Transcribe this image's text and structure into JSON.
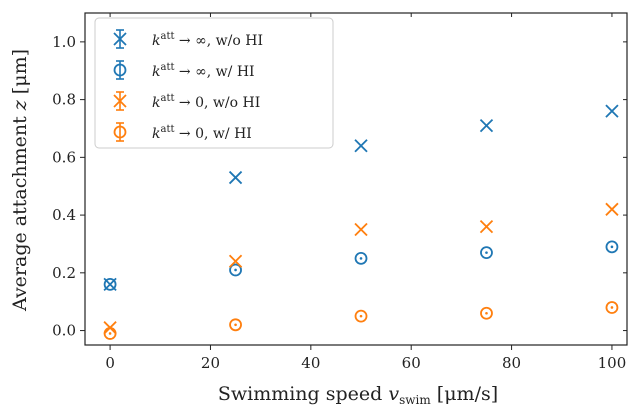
{
  "chart_data": {
    "type": "scatter",
    "xlabel": "Swimming speed v_swim [μm/s]",
    "ylabel": "Average attachment z [μm]",
    "xlim": [
      -5,
      103
    ],
    "ylim": [
      -0.05,
      1.1
    ],
    "xticks": [
      0,
      20,
      40,
      60,
      80,
      100
    ],
    "yticks": [
      0.0,
      0.2,
      0.4,
      0.6,
      0.8,
      1.0
    ],
    "xtick_labels": [
      "0",
      "20",
      "40",
      "60",
      "80",
      "100"
    ],
    "ytick_labels": [
      "0.0",
      "0.2",
      "0.4",
      "0.6",
      "0.8",
      "1.0"
    ],
    "grid": false,
    "legend_position": "top-left",
    "series": [
      {
        "name": "k^att → ∞, w/o HI",
        "color": "#1f77b4",
        "marker": "x",
        "errorbar": true,
        "x": [
          0,
          25,
          50,
          75,
          100
        ],
        "y": [
          0.16,
          0.53,
          0.64,
          0.71,
          0.76
        ]
      },
      {
        "name": "k^att → ∞, w/ HI",
        "color": "#1f77b4",
        "marker": "o",
        "errorbar": true,
        "x": [
          0,
          25,
          50,
          75,
          100
        ],
        "y": [
          0.16,
          0.21,
          0.25,
          0.27,
          0.29
        ]
      },
      {
        "name": "k^att → 0, w/o HI",
        "color": "#ff7f0e",
        "marker": "x",
        "errorbar": true,
        "x": [
          0,
          25,
          50,
          75,
          100
        ],
        "y": [
          0.01,
          0.24,
          0.35,
          0.36,
          0.42
        ]
      },
      {
        "name": "k^att → 0, w/ HI",
        "color": "#ff7f0e",
        "marker": "o",
        "errorbar": true,
        "x": [
          0,
          25,
          50,
          75,
          100
        ],
        "y": [
          -0.01,
          0.02,
          0.05,
          0.06,
          0.08
        ]
      }
    ]
  },
  "legend": {
    "entries": [
      {
        "prefix": "k",
        "sup": "att",
        "suffix": " → ∞, w/o HI"
      },
      {
        "prefix": "k",
        "sup": "att",
        "suffix": " → ∞, w/ HI"
      },
      {
        "prefix": "k",
        "sup": "att",
        "suffix": " → 0, w/o HI"
      },
      {
        "prefix": "k",
        "sup": "att",
        "suffix": " → 0, w/ HI"
      }
    ]
  },
  "axes": {
    "xlabel_main": "Swimming speed ",
    "xlabel_var": "v",
    "xlabel_sub": "swim",
    "xlabel_unit": " [μm/s]",
    "ylabel_main": "Average attachment ",
    "ylabel_var": "z",
    "ylabel_unit": " [μm]"
  }
}
